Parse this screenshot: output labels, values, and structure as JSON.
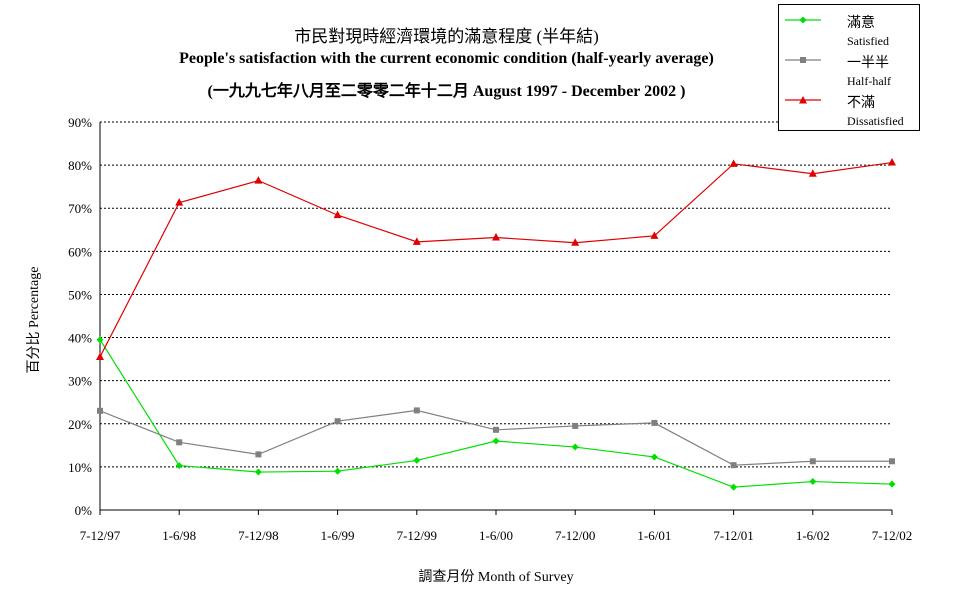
{
  "chart_data": {
    "type": "line",
    "title": "市民對現時經濟環境的滿意程度 (半年結)",
    "subtitle": "People's satisfaction with the current economic condition (half-yearly average)",
    "subtitle2": "(一九九七年八月至二零零二年十二月 August 1997 - December 2002 )",
    "xlabel": "調查月份 Month of Survey",
    "ylabel": "百分比 Percentage",
    "categories": [
      "7-12/97",
      "1-6/98",
      "7-12/98",
      "1-6/99",
      "7-12/99",
      "1-6/00",
      "7-12/00",
      "1-6/01",
      "7-12/01",
      "1-6/02",
      "7-12/02"
    ],
    "ylim": [
      0,
      90
    ],
    "yticks": [
      0,
      10,
      20,
      30,
      40,
      50,
      60,
      70,
      80,
      90
    ],
    "ytick_labels": [
      "0%",
      "10%",
      "20%",
      "30%",
      "40%",
      "50%",
      "60%",
      "70%",
      "80%",
      "90%"
    ],
    "grid": "horizontal dashed",
    "legend_position": "top-right",
    "series": [
      {
        "name": "滿意",
        "name_en": "Satisfied",
        "color": "#00e000",
        "marker": "diamond",
        "values": [
          39.5,
          10.3,
          8.8,
          9.0,
          11.5,
          16.0,
          14.6,
          12.3,
          5.3,
          6.6,
          6.0
        ]
      },
      {
        "name": "一半半",
        "name_en": "Half-half",
        "color": "#808080",
        "marker": "square",
        "values": [
          23.0,
          15.7,
          12.9,
          20.6,
          23.1,
          18.6,
          19.5,
          20.2,
          10.4,
          11.3,
          11.3
        ]
      },
      {
        "name": "不滿",
        "name_en": "Dissatisfied",
        "color": "#e00000",
        "marker": "triangle",
        "values": [
          35.5,
          71.3,
          76.4,
          68.4,
          62.2,
          63.2,
          62.0,
          63.6,
          80.3,
          78.0,
          80.6
        ]
      }
    ]
  }
}
